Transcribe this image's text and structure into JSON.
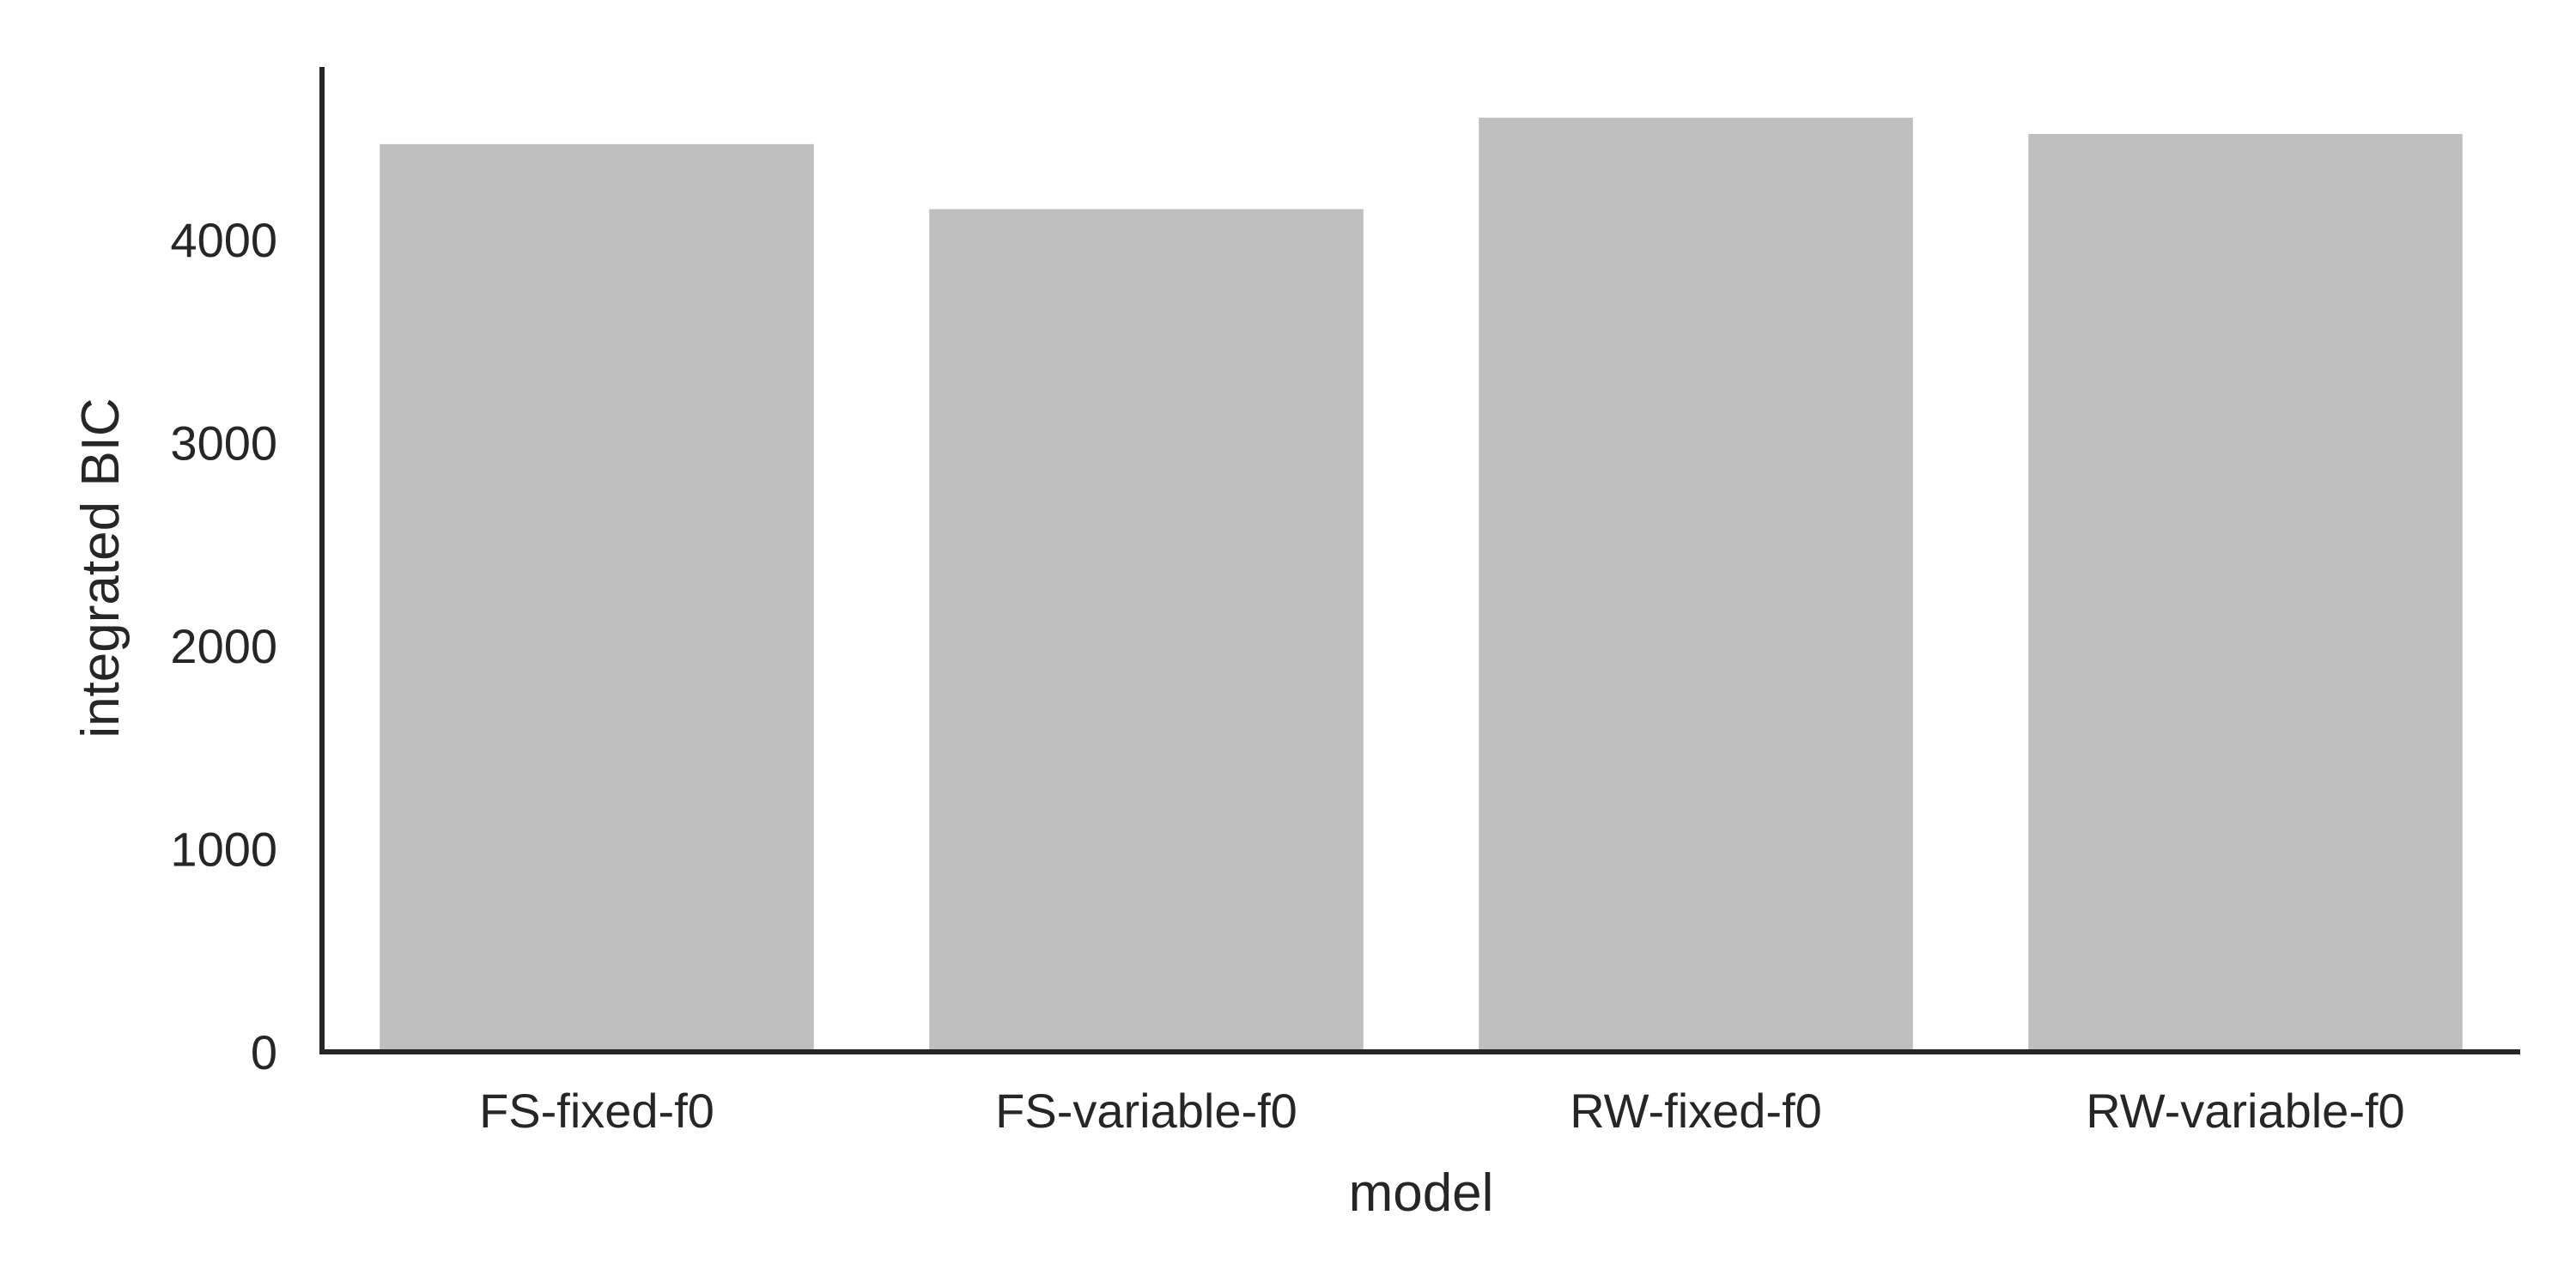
{
  "chart_data": {
    "type": "bar",
    "categories": [
      "FS-fixed-f0",
      "FS-variable-f0",
      "RW-fixed-f0",
      "RW-variable-f0"
    ],
    "values": [
      4470,
      4150,
      4600,
      4520
    ],
    "xlabel": "model",
    "ylabel": "integrated BIC",
    "ylim": [
      0,
      4850
    ],
    "yticks": [
      0,
      1000,
      2000,
      3000,
      4000
    ],
    "grid": false,
    "bar_color": "#bfbfbf",
    "axis_color": "#262626"
  }
}
